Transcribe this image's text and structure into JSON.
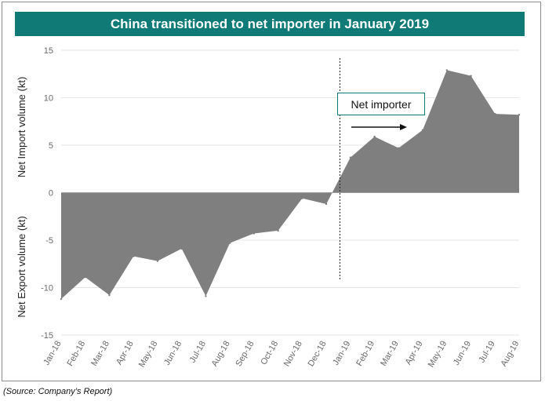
{
  "chart_data": {
    "type": "area",
    "title": "China transitioned to net importer in January 2019",
    "ylabel_positive": "Net Import volume (kt)",
    "ylabel_negative": "Net Export volume (kt)",
    "categories": [
      "Jan-18",
      "Feb-18",
      "Mar-18",
      "Apr-18",
      "May-18",
      "Jun-18",
      "Jul-18",
      "Aug-18",
      "Sep-18",
      "Oct-18",
      "Nov-18",
      "Dec-18",
      "Jan-19",
      "Feb-19",
      "Mar-19",
      "Apr-19",
      "May-19",
      "Jun-19",
      "Jul-19",
      "Aug-19"
    ],
    "values": [
      -11.2,
      -8.9,
      -10.8,
      -6.7,
      -7.2,
      -5.9,
      -10.9,
      -5.3,
      -4.3,
      -4.0,
      -0.6,
      -1.2,
      3.7,
      5.9,
      4.7,
      6.6,
      12.9,
      12.3,
      8.3,
      8.2
    ],
    "yticks": [
      15,
      10,
      5,
      0,
      -5,
      -10,
      -15
    ],
    "ylim": [
      -15,
      15
    ],
    "transition_index": 11.5,
    "annotation": "Net importer",
    "fill_color": "#7f7f7f",
    "header_color": "#0f7a76"
  },
  "source_note": "(Source: Company’s Report)"
}
